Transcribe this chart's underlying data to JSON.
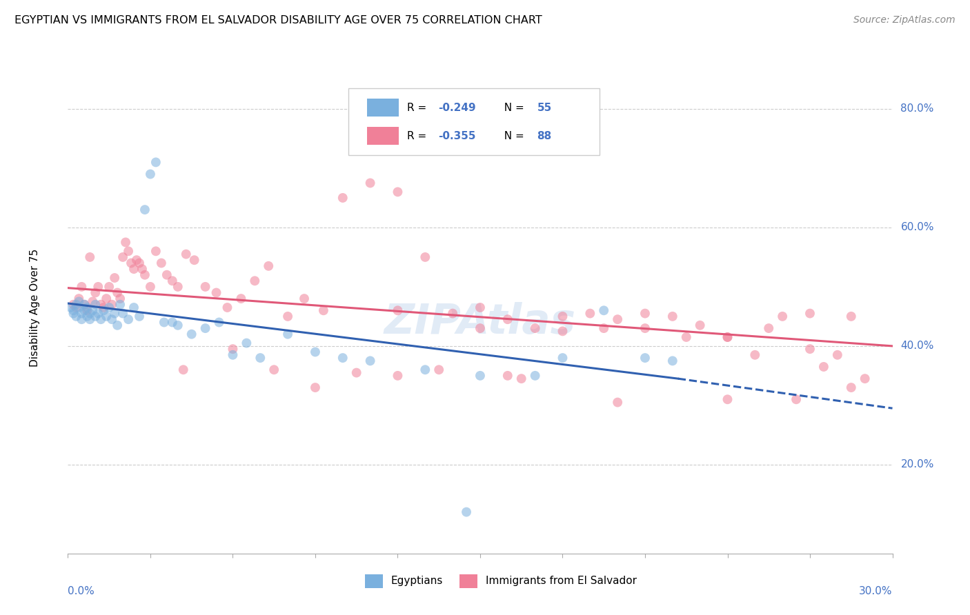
{
  "title": "EGYPTIAN VS IMMIGRANTS FROM EL SALVADOR DISABILITY AGE OVER 75 CORRELATION CHART",
  "source": "Source: ZipAtlas.com",
  "ylabel": "Disability Age Over 75",
  "xmin": 0.0,
  "xmax": 0.3,
  "ymin": 0.05,
  "ymax": 0.88,
  "yticks": [
    0.2,
    0.4,
    0.6,
    0.8
  ],
  "ytick_labels": [
    "20.0%",
    "40.0%",
    "60.0%",
    "80.0%"
  ],
  "egyptian_color": "#7ab0de",
  "salvador_color": "#f08098",
  "trend_blue_color": "#3060b0",
  "trend_pink_color": "#e05878",
  "trend_blue_x0": 0.0,
  "trend_blue_y0": 0.472,
  "trend_blue_x1": 0.222,
  "trend_blue_y1": 0.345,
  "trend_blue_dash_x1": 0.3,
  "trend_blue_dash_y1": 0.295,
  "trend_pink_x0": 0.0,
  "trend_pink_y0": 0.498,
  "trend_pink_x1": 0.3,
  "trend_pink_y1": 0.4,
  "legend_R1": "-0.249",
  "legend_N1": "55",
  "legend_R2": "-0.355",
  "legend_N2": "88",
  "legend_label1": "Egyptians",
  "legend_label2": "Immigrants from El Salvador",
  "watermark": "ZIPAtlas",
  "egyptians_x": [
    0.001,
    0.002,
    0.002,
    0.003,
    0.003,
    0.004,
    0.004,
    0.005,
    0.005,
    0.006,
    0.006,
    0.007,
    0.007,
    0.008,
    0.008,
    0.009,
    0.01,
    0.01,
    0.011,
    0.012,
    0.013,
    0.014,
    0.015,
    0.016,
    0.017,
    0.018,
    0.019,
    0.02,
    0.022,
    0.024,
    0.026,
    0.028,
    0.03,
    0.032,
    0.035,
    0.038,
    0.04,
    0.045,
    0.05,
    0.055,
    0.06,
    0.065,
    0.07,
    0.08,
    0.09,
    0.1,
    0.11,
    0.13,
    0.15,
    0.17,
    0.18,
    0.195,
    0.21,
    0.22,
    0.145
  ],
  "egyptians_y": [
    0.465,
    0.46,
    0.455,
    0.47,
    0.45,
    0.465,
    0.475,
    0.455,
    0.445,
    0.46,
    0.47,
    0.465,
    0.45,
    0.455,
    0.445,
    0.46,
    0.45,
    0.47,
    0.455,
    0.445,
    0.46,
    0.45,
    0.465,
    0.445,
    0.455,
    0.435,
    0.47,
    0.455,
    0.445,
    0.465,
    0.45,
    0.63,
    0.69,
    0.71,
    0.44,
    0.44,
    0.435,
    0.42,
    0.43,
    0.44,
    0.385,
    0.405,
    0.38,
    0.42,
    0.39,
    0.38,
    0.375,
    0.36,
    0.35,
    0.35,
    0.38,
    0.46,
    0.38,
    0.375,
    0.12
  ],
  "salvador_x": [
    0.002,
    0.003,
    0.004,
    0.005,
    0.006,
    0.007,
    0.008,
    0.009,
    0.01,
    0.011,
    0.012,
    0.013,
    0.014,
    0.015,
    0.016,
    0.017,
    0.018,
    0.019,
    0.02,
    0.021,
    0.022,
    0.023,
    0.024,
    0.025,
    0.026,
    0.027,
    0.028,
    0.03,
    0.032,
    0.034,
    0.036,
    0.038,
    0.04,
    0.043,
    0.046,
    0.05,
    0.054,
    0.058,
    0.063,
    0.068,
    0.073,
    0.08,
    0.086,
    0.093,
    0.1,
    0.11,
    0.12,
    0.13,
    0.14,
    0.15,
    0.16,
    0.17,
    0.18,
    0.19,
    0.2,
    0.21,
    0.22,
    0.23,
    0.24,
    0.25,
    0.26,
    0.27,
    0.28,
    0.29,
    0.042,
    0.06,
    0.075,
    0.09,
    0.105,
    0.12,
    0.135,
    0.15,
    0.165,
    0.18,
    0.195,
    0.21,
    0.225,
    0.24,
    0.255,
    0.265,
    0.275,
    0.285,
    0.12,
    0.16,
    0.2,
    0.24,
    0.27,
    0.285
  ],
  "salvador_y": [
    0.47,
    0.465,
    0.48,
    0.5,
    0.47,
    0.46,
    0.55,
    0.475,
    0.49,
    0.5,
    0.47,
    0.465,
    0.48,
    0.5,
    0.47,
    0.515,
    0.49,
    0.48,
    0.55,
    0.575,
    0.56,
    0.54,
    0.53,
    0.545,
    0.54,
    0.53,
    0.52,
    0.5,
    0.56,
    0.54,
    0.52,
    0.51,
    0.5,
    0.555,
    0.545,
    0.5,
    0.49,
    0.465,
    0.48,
    0.51,
    0.535,
    0.45,
    0.48,
    0.46,
    0.65,
    0.675,
    0.66,
    0.55,
    0.455,
    0.465,
    0.445,
    0.43,
    0.425,
    0.455,
    0.445,
    0.43,
    0.45,
    0.435,
    0.415,
    0.385,
    0.45,
    0.395,
    0.385,
    0.345,
    0.36,
    0.395,
    0.36,
    0.33,
    0.355,
    0.46,
    0.36,
    0.43,
    0.345,
    0.45,
    0.43,
    0.455,
    0.415,
    0.415,
    0.43,
    0.31,
    0.365,
    0.33,
    0.35,
    0.35,
    0.305,
    0.31,
    0.455,
    0.45
  ]
}
